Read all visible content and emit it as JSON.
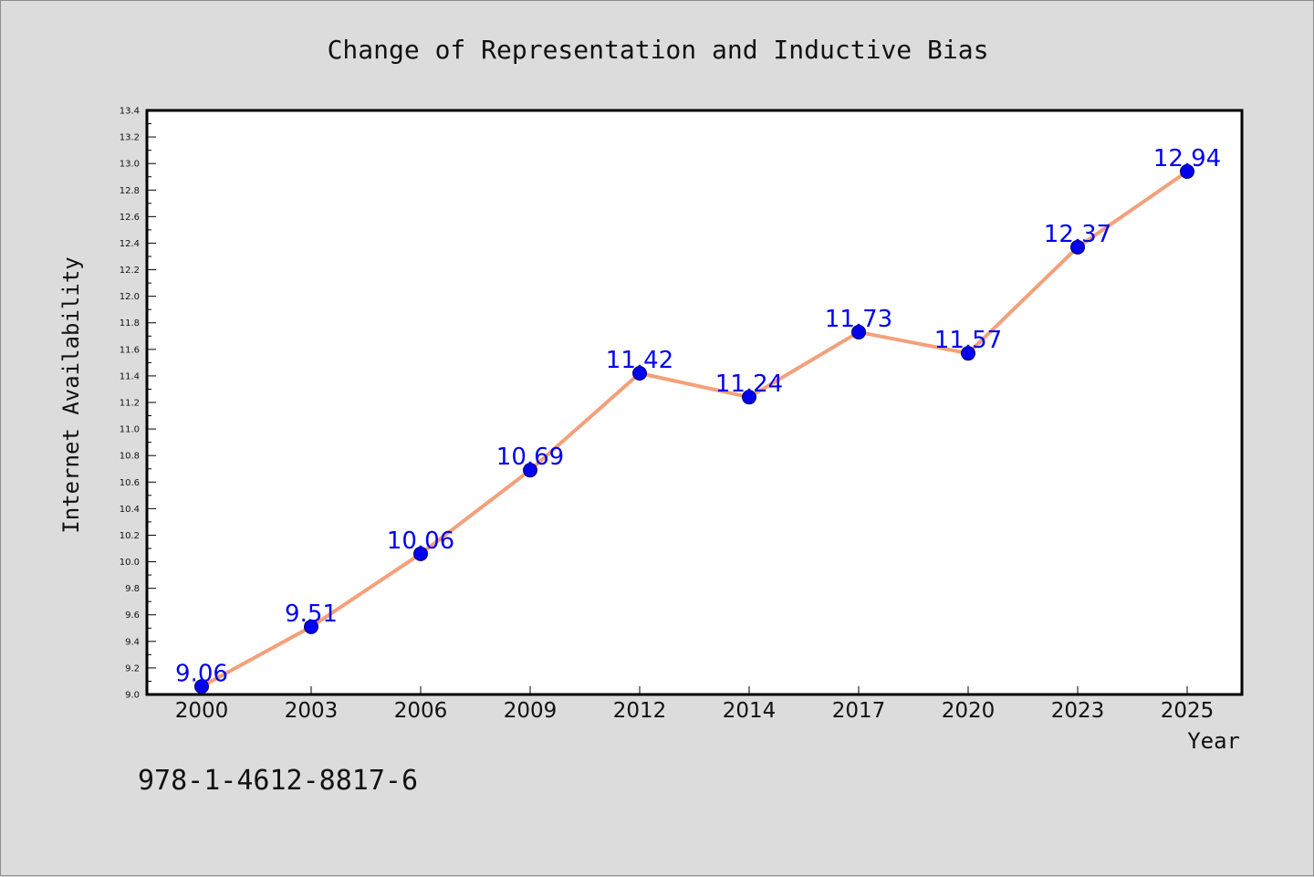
{
  "chart_data": {
    "type": "line",
    "title": "Change of Representation and Inductive Bias",
    "xlabel": "Year",
    "ylabel": "Internet Availability",
    "categories": [
      "2000",
      "2003",
      "2006",
      "2009",
      "2012",
      "2014",
      "2017",
      "2020",
      "2023",
      "2025"
    ],
    "series": [
      {
        "values": [
          9.06,
          9.51,
          10.06,
          10.69,
          11.42,
          11.24,
          11.73,
          11.57,
          12.37,
          12.94
        ],
        "line_color": "#f4a07a",
        "marker_color": "#0000ee",
        "label_color": "#0000ee"
      }
    ],
    "data_labels": [
      "9.06",
      "9.51",
      "10.06",
      "10.69",
      "11.42",
      "11.24",
      "11.73",
      "11.57",
      "12.37",
      "12.94"
    ],
    "ylim": [
      9.0,
      13.4
    ],
    "yticks": [
      "9.0",
      "9.2",
      "9.4",
      "9.6",
      "9.8",
      "10.0",
      "10.2",
      "10.4",
      "10.6",
      "10.8",
      "11.0",
      "11.2",
      "11.4",
      "11.6",
      "11.8",
      "12.0",
      "12.2",
      "12.4",
      "12.6",
      "12.8",
      "13.0",
      "13.2",
      "13.4"
    ],
    "grid": false,
    "legend": "none"
  },
  "footnote": "978-1-4612-8817-6",
  "colors": {
    "background": "#dcdcdc",
    "plot_background": "#ffffff",
    "axis": "#000000"
  }
}
